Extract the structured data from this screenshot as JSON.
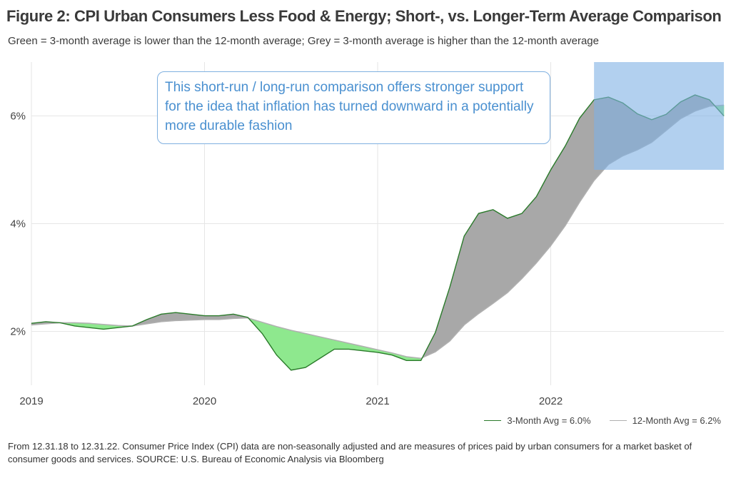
{
  "title": "Figure 2: CPI Urban Consumers Less Food & Energy; Short-, vs. Longer-Term Average Comparison",
  "subtitle": "Green = 3-month average is lower than the 12-month average; Grey = 3-month average is higher than the 12-month average",
  "callout": "This short-run / long-run comparison offers stronger support for the idea that inflation has turned downward in a potentially more durable fashion",
  "footnote": "From 12.31.18 to 12.31.22. Consumer Price Index (CPI) data are non-seasonally adjusted and are measures of prices paid by urban consumers for a market basket of consumer goods and services. SOURCE: U.S. Bureau of Economic Analysis via Bloomberg",
  "colors": {
    "short_line": "#2a7a2a",
    "long_line": "#b0b0b0",
    "fill_lower": "#8ee88e",
    "fill_higher": "#a8a8a8",
    "highlight": "#7fb0e4",
    "grid": "#e6e6e6"
  },
  "chart_data": {
    "type": "area",
    "x_start": "2019-01",
    "x_ticks": [
      "2019",
      "2020",
      "2021",
      "2022"
    ],
    "y_ticks": [
      "2%",
      "4%",
      "6%"
    ],
    "y_tick_values": [
      2,
      4,
      6
    ],
    "ylim": [
      1.0,
      7.0
    ],
    "grid": true,
    "legend_position": "bottom-right",
    "series": [
      {
        "name": "3-Month Avg = 6.0%",
        "values": [
          2.15,
          2.18,
          2.16,
          2.1,
          2.07,
          2.04,
          2.07,
          2.1,
          2.22,
          2.32,
          2.35,
          2.32,
          2.29,
          2.29,
          2.32,
          2.26,
          1.96,
          1.56,
          1.28,
          1.33,
          1.5,
          1.67,
          1.67,
          1.64,
          1.61,
          1.56,
          1.46,
          1.46,
          1.98,
          2.82,
          3.77,
          4.19,
          4.26,
          4.1,
          4.19,
          4.5,
          5.0,
          5.44,
          5.96,
          6.3,
          6.35,
          6.24,
          6.04,
          5.93,
          6.03,
          6.26,
          6.39,
          6.3,
          6.0
        ]
      },
      {
        "name": "12-Month Avg = 6.2%",
        "values": [
          2.12,
          2.14,
          2.16,
          2.16,
          2.15,
          2.13,
          2.11,
          2.1,
          2.14,
          2.18,
          2.2,
          2.21,
          2.22,
          2.22,
          2.24,
          2.25,
          2.17,
          2.09,
          2.02,
          1.96,
          1.9,
          1.84,
          1.78,
          1.72,
          1.66,
          1.6,
          1.53,
          1.5,
          1.62,
          1.82,
          2.12,
          2.33,
          2.52,
          2.72,
          2.98,
          3.27,
          3.59,
          3.96,
          4.4,
          4.8,
          5.1,
          5.26,
          5.37,
          5.51,
          5.73,
          5.95,
          6.09,
          6.18,
          6.2
        ]
      }
    ],
    "highlight_region": {
      "x_from": "2022-04",
      "x_to": "2023-01",
      "y_from": 5.0,
      "y_to": 7.0
    }
  }
}
